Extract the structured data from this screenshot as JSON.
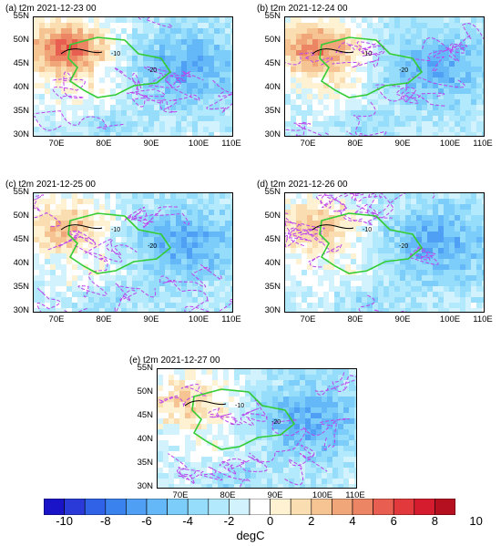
{
  "panels": [
    {
      "title": "(a) t2m 2021-12-23 00",
      "warm_extent": 0.95
    },
    {
      "title": "(b) t2m 2021-12-24 00",
      "warm_extent": 0.85
    },
    {
      "title": "(c) t2m 2021-12-25 00",
      "warm_extent": 0.6
    },
    {
      "title": "(d) t2m 2021-12-26 00",
      "warm_extent": 0.55
    },
    {
      "title": "(e) t2m 2021-12-27 00",
      "warm_extent": 0.5
    }
  ],
  "lat_ticks": [
    "55N",
    "50N",
    "45N",
    "40N",
    "35N",
    "30N"
  ],
  "lon_ticks": [
    "70E",
    "80E",
    "90E",
    "100E",
    "110E"
  ],
  "contour_labels": [
    "-10",
    "-20"
  ],
  "colorbar": {
    "labels": [
      "-10",
      "-8",
      "-6",
      "-4",
      "-2",
      "0",
      "2",
      "4",
      "6",
      "8",
      "10"
    ],
    "units": "degC",
    "colors": [
      "#1a14c8",
      "#2a3ad8",
      "#2f62e6",
      "#3a82ee",
      "#4fa0f4",
      "#64b8f8",
      "#7ccdfa",
      "#96ddfb",
      "#b2e9fc",
      "#d2f3fd",
      "#ffffff",
      "#fff2d2",
      "#fbddb2",
      "#f6c392",
      "#f1a67a",
      "#ec8564",
      "#e85e50",
      "#e23a3c",
      "#d51c2e",
      "#b5101f"
    ]
  },
  "colors": {
    "boundary_green": "#33cc33",
    "contour_magenta": "#bb44ee",
    "contour_black": "#000000"
  }
}
